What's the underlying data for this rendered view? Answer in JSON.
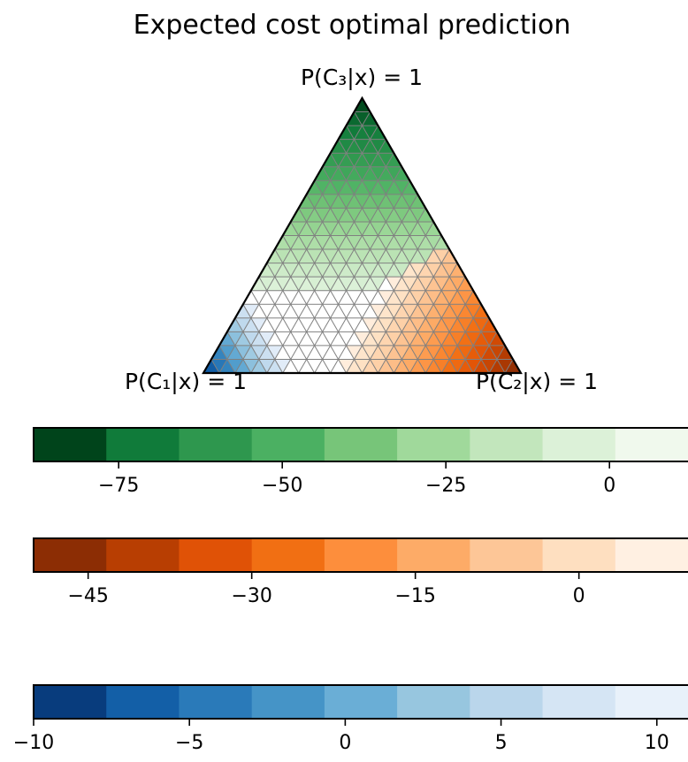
{
  "chart_data": {
    "type": "heatmap",
    "title": "Expected cost optimal prediction",
    "subtype": "ternary-simplex",
    "grid": true,
    "vertex_labels": {
      "c1": "P(C₁|x) = 1",
      "c2": "P(C₂|x) = 1",
      "c3": "P(C₃|x) = 1"
    },
    "regions": [
      {
        "colormap": "Greens",
        "region": "top"
      },
      {
        "colormap": "Oranges",
        "region": "bottom-right"
      },
      {
        "colormap": "Blues",
        "region": "bottom-left"
      }
    ],
    "colorbars": [
      {
        "colormap": "Greens",
        "range": [
          -88,
          12
        ],
        "ticks": [
          -75,
          -50,
          -25,
          0
        ],
        "tick_labels": [
          "−75",
          "−50",
          "−25",
          "0"
        ],
        "colors": [
          "#00441b",
          "#107b3a",
          "#2e974e",
          "#4bb062",
          "#77c579",
          "#a0d99b",
          "#c2e6bc",
          "#dcf1d8",
          "#f0f9ed"
        ]
      },
      {
        "colormap": "Oranges",
        "range": [
          -50,
          10
        ],
        "ticks": [
          -45,
          -30,
          -15,
          0
        ],
        "tick_labels": [
          "−45",
          "−30",
          "−15",
          "0"
        ],
        "colors": [
          "#8c2d04",
          "#b83e02",
          "#e05206",
          "#f16f13",
          "#fd8e3c",
          "#fdab67",
          "#fdc697",
          "#fedfc0",
          "#fff0e2"
        ]
      },
      {
        "colormap": "Blues",
        "range": [
          -10,
          11
        ],
        "ticks": [
          -10,
          -5,
          0,
          5,
          10
        ],
        "tick_labels": [
          "−10",
          "−5",
          "0",
          "5",
          "10"
        ],
        "colors": [
          "#083c7d",
          "#135fa7",
          "#2a7ab9",
          "#4594c7",
          "#6aaed6",
          "#97c6df",
          "#bad6eb",
          "#d5e5f4",
          "#e8f1fa"
        ]
      }
    ]
  }
}
